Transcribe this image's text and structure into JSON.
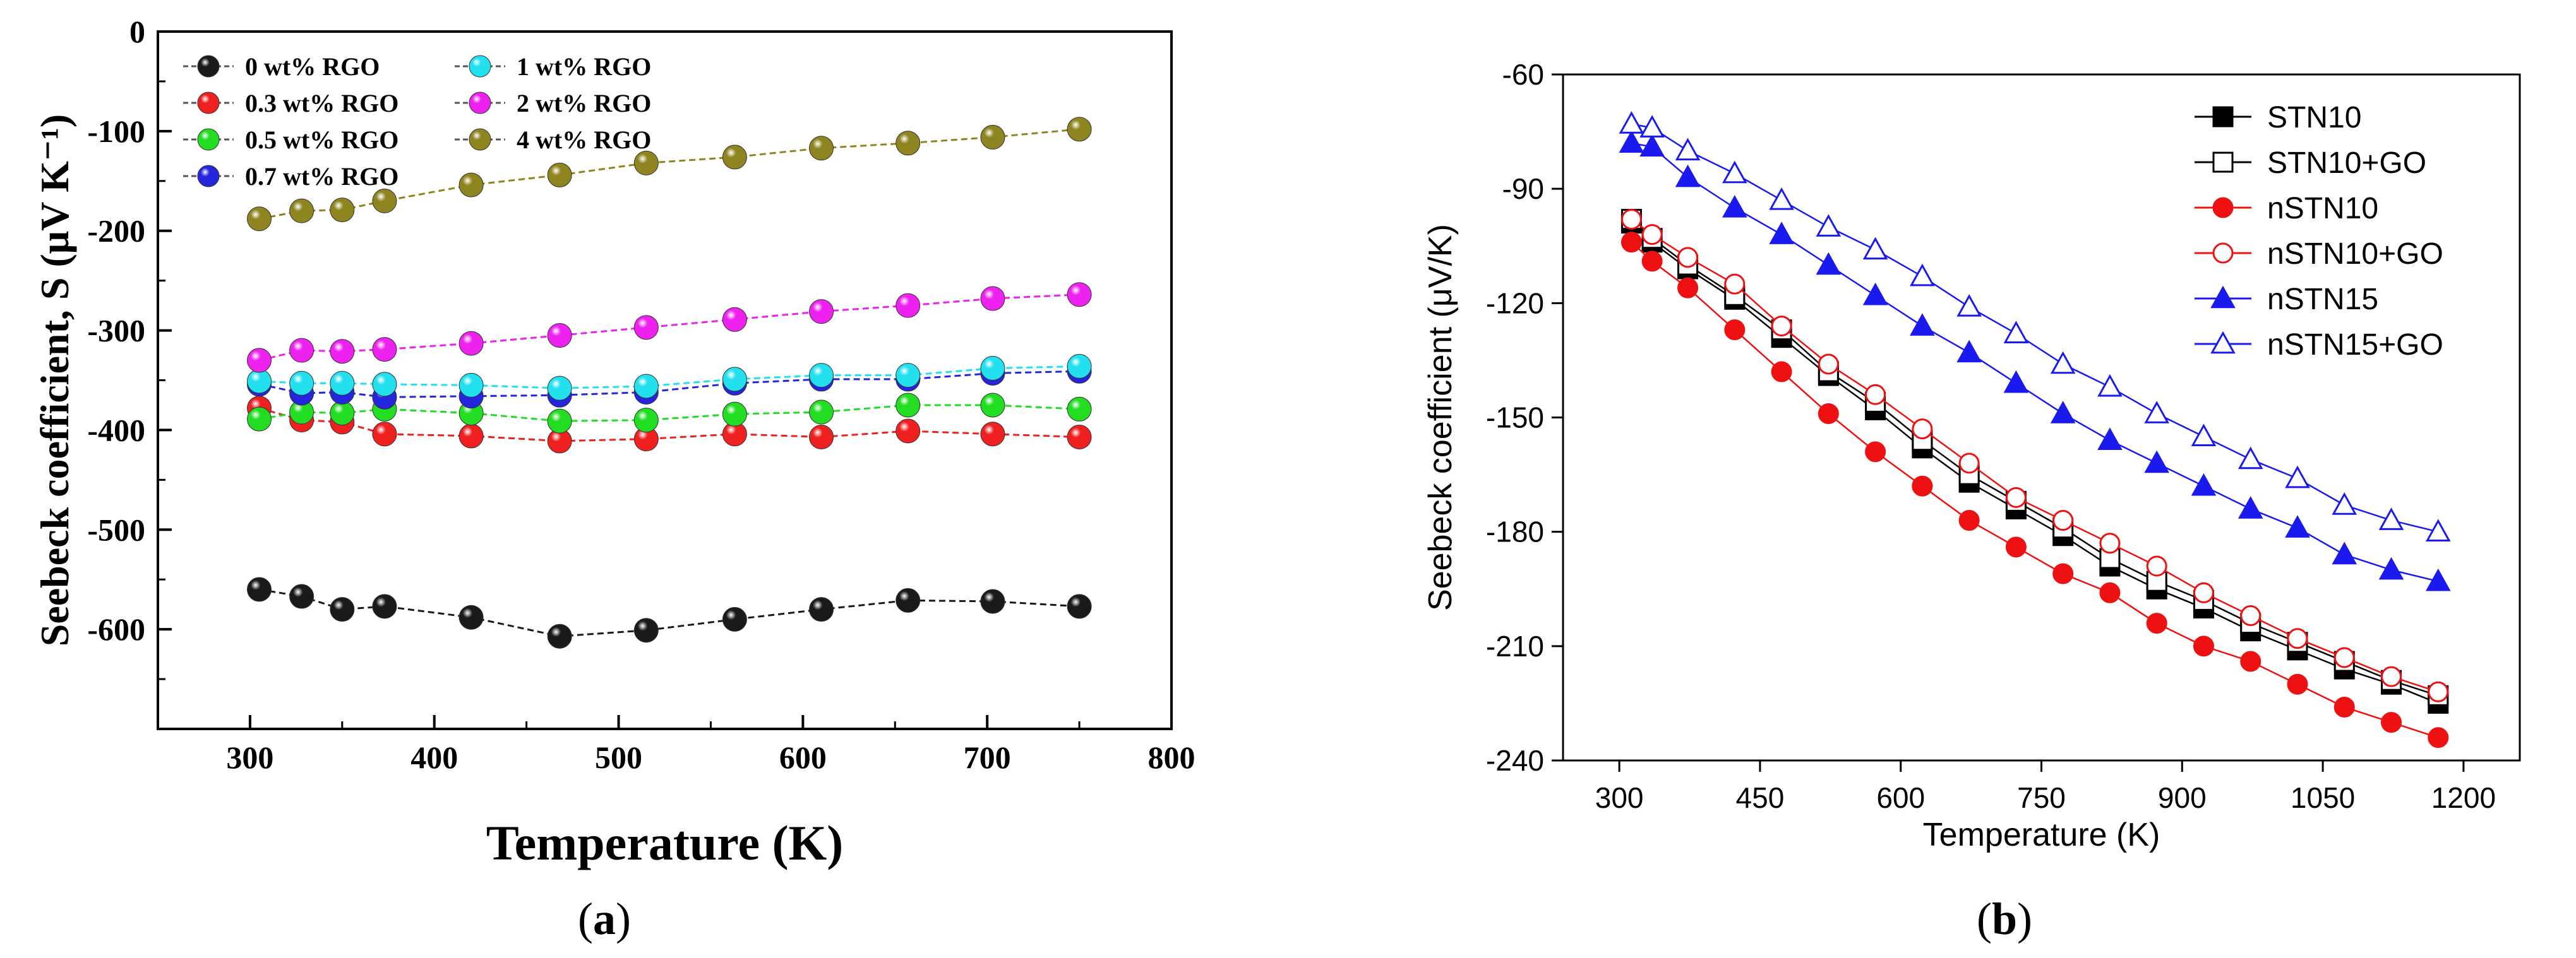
{
  "chart_data": [
    {
      "id": "a",
      "type": "line",
      "caption_letter": "a",
      "xlabel": "Temperature (K)",
      "ylabel": "Seebeck coefficient, S (μV K⁻¹)",
      "xlim": [
        250,
        800
      ],
      "ylim": [
        -700,
        0
      ],
      "xticks": [
        300,
        400,
        500,
        600,
        700,
        800
      ],
      "yticks": [
        0,
        -100,
        -200,
        -300,
        -400,
        -500,
        -600
      ],
      "x": [
        305,
        328,
        350,
        373,
        420,
        468,
        515,
        563,
        610,
        657,
        703,
        750
      ],
      "legend_position": "top-left",
      "series": [
        {
          "name": "0 wt% RGO",
          "color": "#1a1a1a",
          "values": [
            -560,
            -567,
            -580,
            -577,
            -588,
            -607,
            -601,
            -590,
            -580,
            -571,
            -572,
            -577
          ]
        },
        {
          "name": "0.3 wt% RGO",
          "color": "#ee2020",
          "values": [
            -378,
            -390,
            -392,
            -404,
            -406,
            -411,
            -409,
            -404,
            -407,
            -401,
            -404,
            -407
          ]
        },
        {
          "name": "0.5 wt% RGO",
          "color": "#22dd22",
          "values": [
            -389,
            -382,
            -383,
            -379,
            -383,
            -391,
            -390,
            -384,
            -382,
            -375,
            -375,
            -379
          ]
        },
        {
          "name": "0.7 wt% RGO",
          "color": "#2525dd",
          "values": [
            -354,
            -363,
            -362,
            -367,
            -366,
            -365,
            -362,
            -353,
            -349,
            -349,
            -343,
            -341
          ]
        },
        {
          "name": "1 wt% RGO",
          "color": "#22e0ee",
          "values": [
            -351,
            -353,
            -353,
            -354,
            -355,
            -358,
            -356,
            -349,
            -345,
            -345,
            -338,
            -336
          ]
        },
        {
          "name": "2 wt% RGO",
          "color": "#ee22ee",
          "values": [
            -330,
            -320,
            -321,
            -319,
            -313,
            -305,
            -297,
            -289,
            -281,
            -275,
            -268,
            -264
          ]
        },
        {
          "name": "4 wt% RGO",
          "color": "#8e8420",
          "values": [
            -188,
            -180,
            -179,
            -170,
            -154,
            -144,
            -132,
            -126,
            -117,
            -112,
            -106,
            -98
          ]
        }
      ]
    },
    {
      "id": "b",
      "type": "line",
      "caption_letter": "b",
      "xlabel": "Temperature (K)",
      "ylabel": "Seebeck coefficient (μV/K)",
      "xlim": [
        240,
        1260
      ],
      "ylim": [
        -240,
        -60
      ],
      "xticks": [
        300,
        450,
        600,
        750,
        900,
        1050,
        1200
      ],
      "yticks": [
        -60,
        -90,
        -120,
        -150,
        -180,
        -210,
        -240
      ],
      "x": [
        313,
        335,
        373,
        423,
        473,
        523,
        573,
        623,
        673,
        723,
        773,
        823,
        873,
        923,
        973,
        1023,
        1073,
        1123,
        1173
      ],
      "legend_position": "top-right",
      "series": [
        {
          "name": "STN10",
          "color": "#000000",
          "marker": "square",
          "filled": true,
          "values": [
            -99,
            -104,
            -111,
            -119,
            -129,
            -139,
            -148,
            -158,
            -167,
            -174,
            -181,
            -189,
            -195,
            -200,
            -206,
            -211,
            -216,
            -220,
            -225
          ]
        },
        {
          "name": "STN10+GO",
          "color": "#000000",
          "marker": "square",
          "filled": false,
          "values": [
            -98,
            -103,
            -110,
            -118,
            -127,
            -138,
            -146,
            -156,
            -165,
            -172,
            -179,
            -187,
            -193,
            -198,
            -204,
            -209,
            -214,
            -219,
            -223
          ]
        },
        {
          "name": "nSTN10",
          "color": "#ee1111",
          "marker": "circle",
          "filled": true,
          "values": [
            -104,
            -109,
            -116,
            -127,
            -138,
            -149,
            -159,
            -168,
            -177,
            -184,
            -191,
            -196,
            -204,
            -210,
            -214,
            -220,
            -226,
            -230,
            -234
          ]
        },
        {
          "name": "nSTN10+GO",
          "color": "#ee1111",
          "marker": "circle",
          "filled": false,
          "values": [
            -98,
            -102,
            -108,
            -115,
            -126,
            -136,
            -144,
            -153,
            -162,
            -171,
            -177,
            -183,
            -189,
            -196,
            -202,
            -208,
            -213,
            -218,
            -222
          ]
        },
        {
          "name": "nSTN15",
          "color": "#1a1aee",
          "marker": "triangle",
          "filled": true,
          "values": [
            -78,
            -79,
            -87,
            -95,
            -102,
            -110,
            -118,
            -126,
            -133,
            -141,
            -149,
            -156,
            -162,
            -168,
            -174,
            -179,
            -186,
            -190,
            -193
          ]
        },
        {
          "name": "nSTN15+GO",
          "color": "#1a1aee",
          "marker": "triangle",
          "filled": false,
          "values": [
            -73,
            -74,
            -80,
            -86,
            -93,
            -100,
            -106,
            -113,
            -121,
            -128,
            -136,
            -142,
            -149,
            -155,
            -161,
            -166,
            -173,
            -177,
            -180
          ]
        }
      ]
    }
  ]
}
